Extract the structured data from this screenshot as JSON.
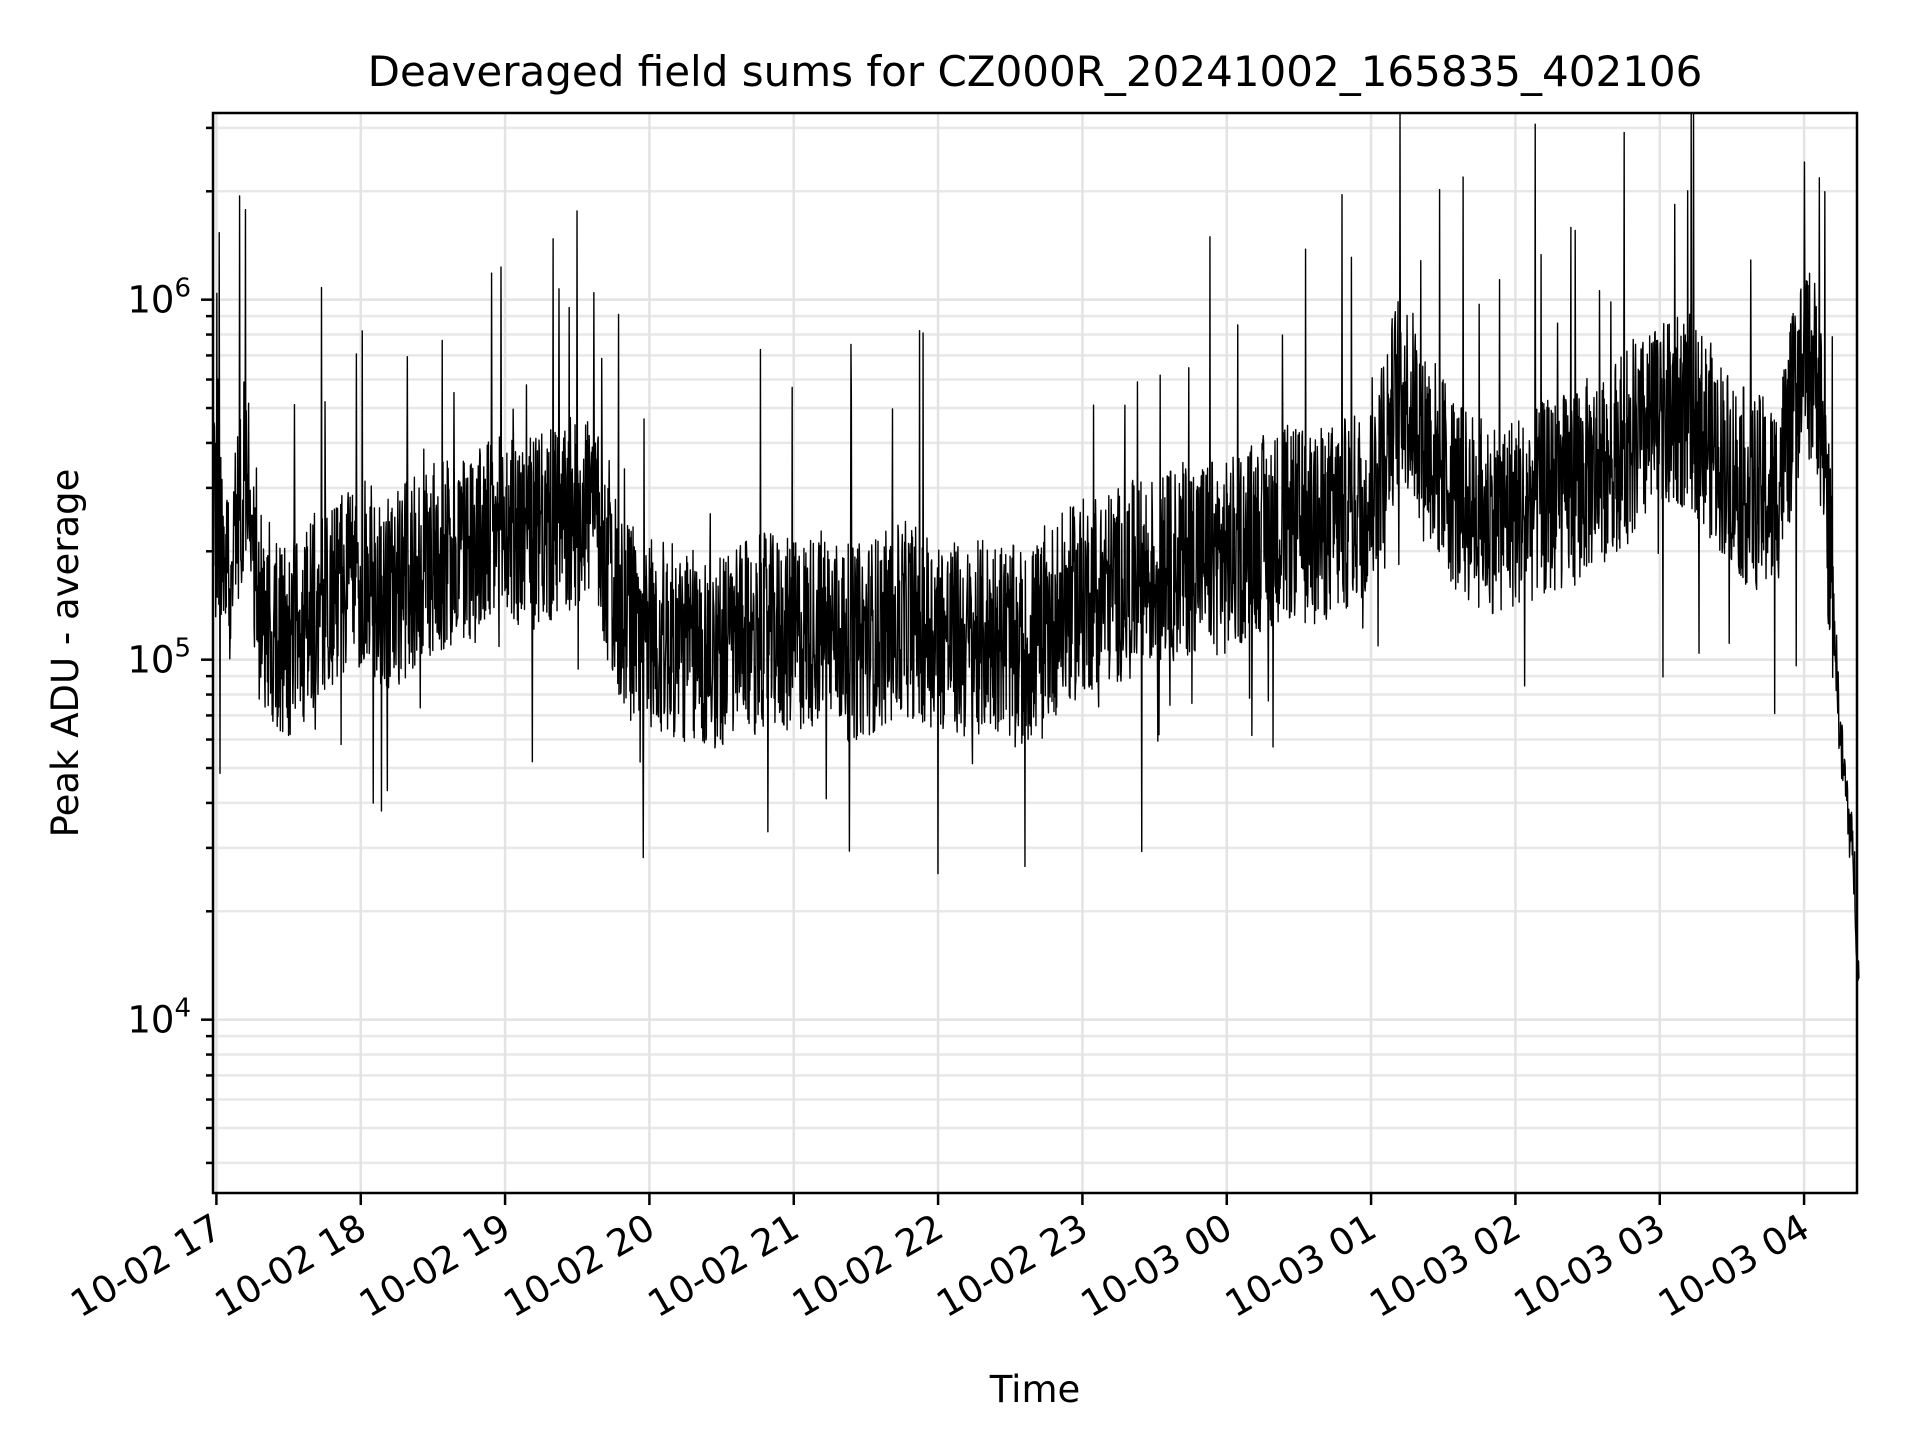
{
  "chart_data": {
    "type": "line",
    "title": "Deaveraged field sums for CZ000R_20241002_165835_402106",
    "xlabel": "Time",
    "ylabel": "Peak ADU - average",
    "x_scale": "time",
    "y_scale": "log",
    "xlim": [
      "2024-10-02 16:58:35",
      "2024-10-03 04:22:00"
    ],
    "ylim": [
      3300,
      3300000
    ],
    "grid": true,
    "x_ticks": [
      "10-02 17",
      "10-02 18",
      "10-02 19",
      "10-02 20",
      "10-02 21",
      "10-02 22",
      "10-02 23",
      "10-03 00",
      "10-03 01",
      "10-03 02",
      "10-03 03",
      "10-03 04"
    ],
    "y_ticks": [
      {
        "value": 10000,
        "base": "10",
        "exp": "4"
      },
      {
        "value": 100000,
        "base": "10",
        "exp": "5"
      },
      {
        "value": 1000000,
        "base": "10",
        "exp": "6"
      }
    ],
    "series": [
      {
        "color": "#000000",
        "x_unit": "hours since 2024-10-02 17:00",
        "x": [
          -0.024,
          0.1,
          0.2,
          0.3,
          0.4,
          0.5,
          0.6,
          0.7,
          0.8,
          0.9,
          1.0,
          1.2,
          1.4,
          1.6,
          1.8,
          2.0,
          2.2,
          2.4,
          2.6,
          2.8,
          3.0,
          3.2,
          3.4,
          3.6,
          3.8,
          4.0,
          4.2,
          4.4,
          4.6,
          4.8,
          5.0,
          5.2,
          5.4,
          5.6,
          5.8,
          6.0,
          6.2,
          6.4,
          6.6,
          6.8,
          7.0,
          7.2,
          7.4,
          7.6,
          7.8,
          8.0,
          8.2,
          8.4,
          8.6,
          8.8,
          9.0,
          9.2,
          9.4,
          9.6,
          9.8,
          10.0,
          10.2,
          10.4,
          10.6,
          10.8,
          11.0,
          11.1,
          11.2,
          11.25,
          11.3,
          11.35,
          11.38
        ],
        "y": [
          250000,
          180000,
          350000,
          150000,
          120000,
          110000,
          130000,
          140000,
          150000,
          160000,
          170000,
          150000,
          180000,
          200000,
          210000,
          230000,
          220000,
          240000,
          280000,
          130000,
          120000,
          110000,
          105000,
          110000,
          120000,
          115000,
          125000,
          110000,
          120000,
          130000,
          120000,
          110000,
          120000,
          105000,
          130000,
          150000,
          160000,
          170000,
          180000,
          200000,
          190000,
          220000,
          240000,
          230000,
          250000,
          280000,
          600000,
          400000,
          280000,
          250000,
          260000,
          280000,
          300000,
          350000,
          400000,
          450000,
          500000,
          380000,
          300000,
          280000,
          700000,
          600000,
          150000,
          60000,
          40000,
          25000,
          12000
        ]
      }
    ]
  }
}
